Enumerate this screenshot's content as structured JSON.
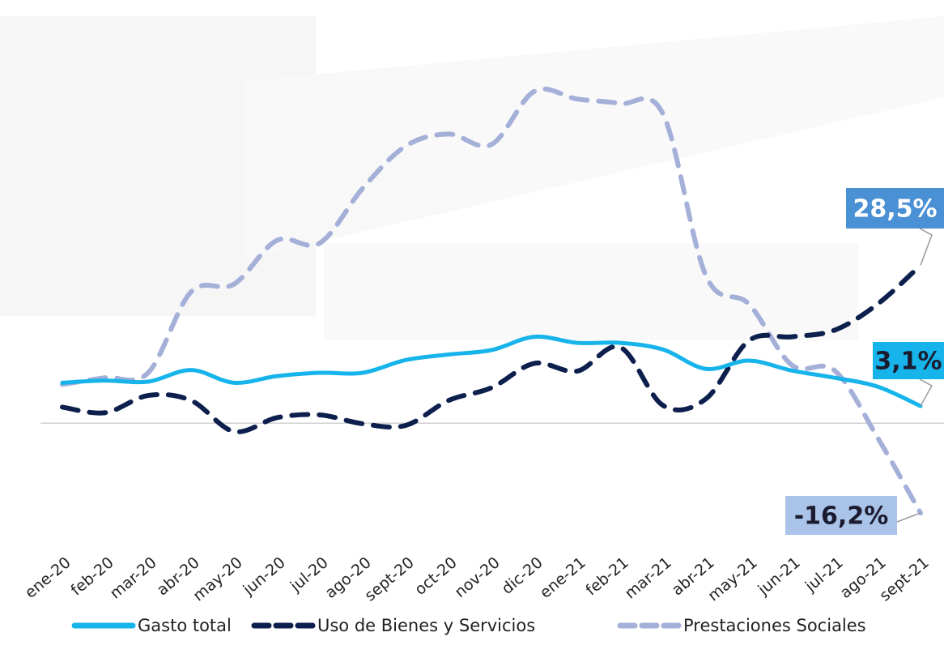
{
  "chart_data": {
    "type": "line",
    "categories": [
      "ene-20",
      "feb-20",
      "mar-20",
      "abr-20",
      "may-20",
      "jun-20",
      "jul-20",
      "ago-20",
      "sept-20",
      "oct-20",
      "nov-20",
      "dic-20",
      "ene-21",
      "feb-21",
      "mar-21",
      "abr-21",
      "may-21",
      "jun-21",
      "jul-21",
      "ago-21",
      "sept-21"
    ],
    "series": [
      {
        "name": "Gasto total",
        "color": "#16b4ea",
        "dash": "solid",
        "end_label": "3,1%",
        "values": [
          7.3,
          7.7,
          7.5,
          9.6,
          7.3,
          8.5,
          9.1,
          9.1,
          11.4,
          12.4,
          13.2,
          15.6,
          14.5,
          14.5,
          13.3,
          9.8,
          11.3,
          9.5,
          8.2,
          6.6,
          3.1
        ]
      },
      {
        "name": "Uso de Bienes y Servicios",
        "color": "#0d1f4d",
        "dash": "dashed",
        "end_label": "28,5%",
        "values": [
          2.9,
          1.9,
          5.0,
          4.1,
          -1.5,
          1.0,
          1.5,
          -0.1,
          -0.4,
          4.1,
          6.4,
          10.8,
          9.4,
          13.7,
          3.2,
          4.4,
          14.9,
          15.6,
          16.8,
          21.5,
          28.5
        ]
      },
      {
        "name": "Prestaciones Sociales",
        "color": "#a5b0d9",
        "dash": "dashed",
        "end_label": "-16,2%",
        "values": [
          7.0,
          8.2,
          9.1,
          23.7,
          25.1,
          33.0,
          32.5,
          42.4,
          50.0,
          52.2,
          50.3,
          59.9,
          58.5,
          57.7,
          55.8,
          26.6,
          21.5,
          10.5,
          9.5,
          -2.6,
          -16.2
        ]
      }
    ],
    "ylim": [
      -20,
      60
    ]
  }
}
